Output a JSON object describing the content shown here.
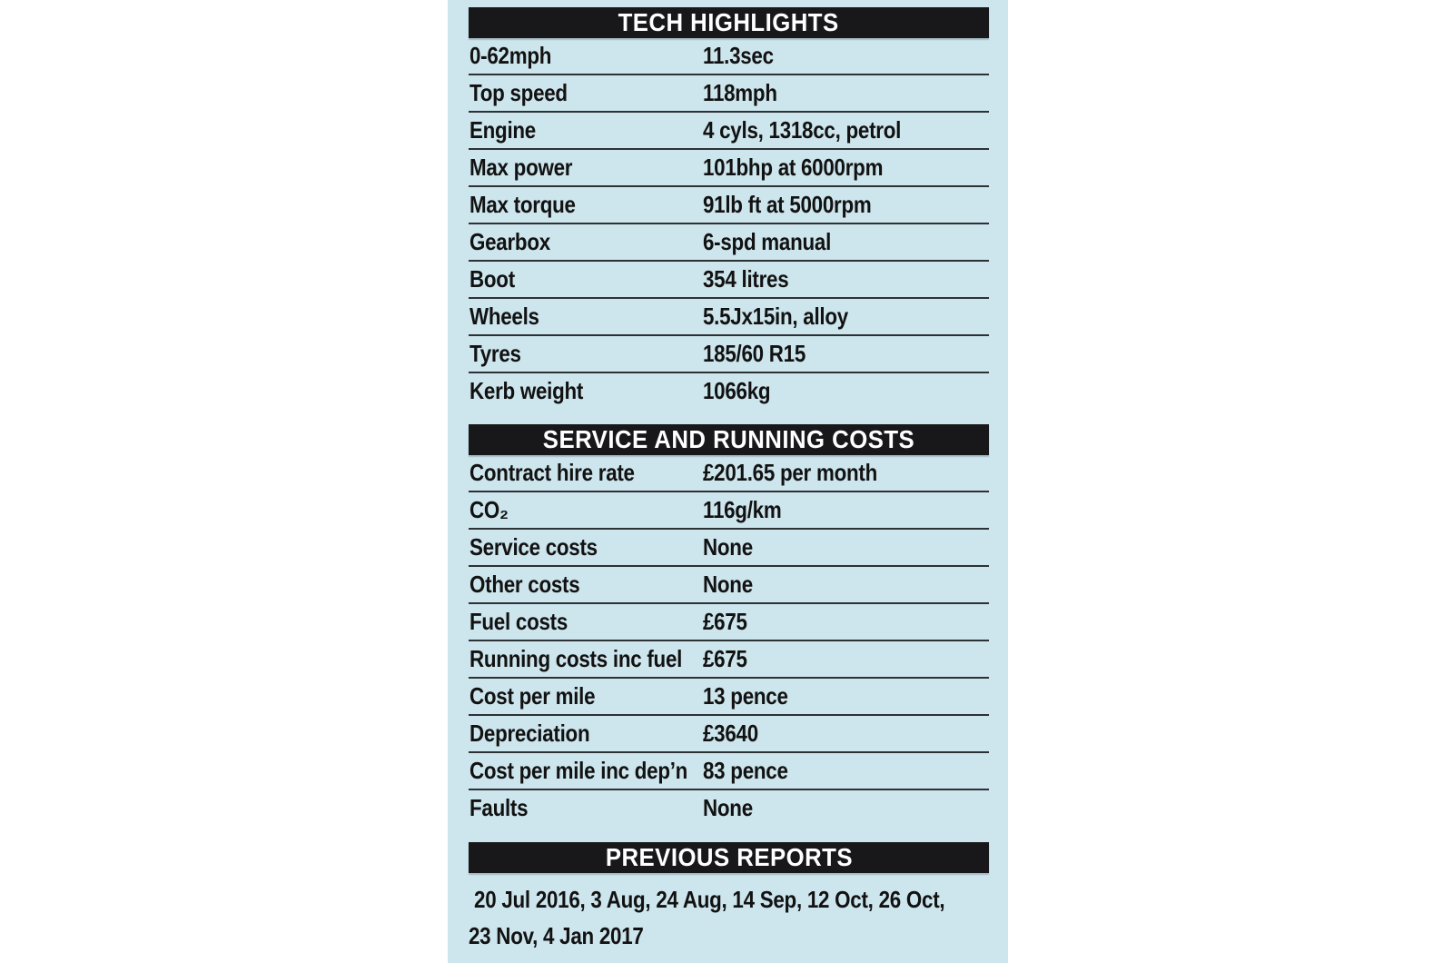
{
  "colors": {
    "page_bg": "#ffffff",
    "panel_bg": "#cde5ed",
    "bar_bg": "#18181a",
    "bar_text": "#ffffff",
    "text": "#121212",
    "divider": "#2c3134"
  },
  "sections": [
    {
      "title": "TECH HIGHLIGHTS",
      "rows": [
        {
          "label": "0-62mph",
          "value": "11.3sec"
        },
        {
          "label": "Top speed",
          "value": "118mph"
        },
        {
          "label": "Engine",
          "value": "4 cyls, 1318cc, petrol"
        },
        {
          "label": "Max power",
          "value": "101bhp at 6000rpm"
        },
        {
          "label": "Max torque",
          "value": "91lb ft at 5000rpm"
        },
        {
          "label": "Gearbox",
          "value": "6-spd manual"
        },
        {
          "label": "Boot",
          "value": "354 litres"
        },
        {
          "label": "Wheels",
          "value": "5.5Jx15in, alloy"
        },
        {
          "label": "Tyres",
          "value": "185/60 R15"
        },
        {
          "label": "Kerb weight",
          "value": "1066kg"
        }
      ]
    },
    {
      "title": "SERVICE AND RUNNING COSTS",
      "rows": [
        {
          "label": "Contract hire rate",
          "value": "£201.65 per month"
        },
        {
          "label": "CO₂",
          "value": "116g/km"
        },
        {
          "label": "Service costs",
          "value": "None"
        },
        {
          "label": "Other costs",
          "value": "None"
        },
        {
          "label": "Fuel costs",
          "value": "£675"
        },
        {
          "label": "Running costs inc fuel",
          "value": "£675"
        },
        {
          "label": "Cost per mile",
          "value": "13 pence"
        },
        {
          "label": "Depreciation",
          "value": "£3640"
        },
        {
          "label": "Cost per mile inc dep’n",
          "value": "83 pence"
        },
        {
          "label": "Faults",
          "value": "None"
        }
      ]
    },
    {
      "title": "PREVIOUS REPORTS",
      "lines": [
        "20 Jul 2016, 3 Aug, 24 Aug, 14 Sep, 12 Oct, 26 Oct,",
        "23 Nov, 4 Jan 2017"
      ]
    }
  ]
}
